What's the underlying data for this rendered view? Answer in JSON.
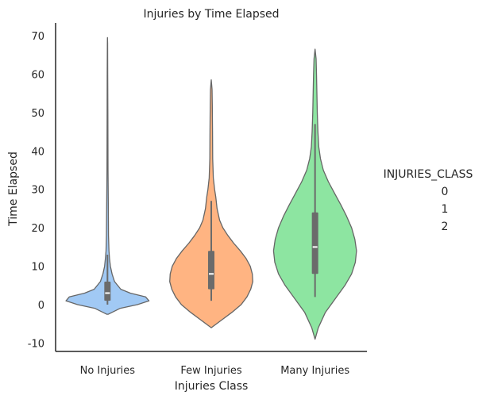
{
  "chart_data": {
    "type": "violin",
    "title": "Injuries by Time Elapsed",
    "xlabel": "Injuries Class",
    "ylabel": "Time Elapsed",
    "categories": [
      "No Injuries",
      "Few Injuries",
      "Many Injuries"
    ],
    "ylim": [
      -13,
      73.5
    ],
    "yticks": [
      -10,
      0,
      10,
      20,
      30,
      40,
      50,
      60,
      70
    ],
    "colors": [
      "#a1c9f4",
      "#ffb482",
      "#8de5a1"
    ],
    "edge_color": "#666666",
    "grid": false,
    "legend": {
      "title": "INJURIES_CLASS",
      "placement": "right",
      "entries": [
        "0",
        "1",
        "2"
      ]
    },
    "series": [
      {
        "category": "No Injuries",
        "profile": [
          [
            -2.5,
            0.02
          ],
          [
            -1.0,
            0.3
          ],
          [
            0.0,
            0.72
          ],
          [
            1.0,
            1.0
          ],
          [
            2.0,
            0.92
          ],
          [
            3.0,
            0.55
          ],
          [
            4.0,
            0.32
          ],
          [
            6.0,
            0.17
          ],
          [
            8.0,
            0.11
          ],
          [
            10.0,
            0.07
          ],
          [
            12.0,
            0.05
          ],
          [
            14.0,
            0.035
          ],
          [
            18.0,
            0.025
          ],
          [
            25.0,
            0.02
          ],
          [
            35.0,
            0.012
          ],
          [
            50.0,
            0.008
          ],
          [
            60.0,
            0.006
          ],
          [
            68.0,
            0.003
          ],
          [
            69.5,
            0.0
          ]
        ],
        "box": {
          "q1": 1,
          "median": 3,
          "q3": 6,
          "whisker_low": 0,
          "whisker_high": 13
        }
      },
      {
        "category": "Few Injuries",
        "profile": [
          [
            -6.0,
            0.0
          ],
          [
            -4.0,
            0.25
          ],
          [
            -2.0,
            0.5
          ],
          [
            0.0,
            0.72
          ],
          [
            2.0,
            0.86
          ],
          [
            4.0,
            0.95
          ],
          [
            6.0,
            1.0
          ],
          [
            8.0,
            0.99
          ],
          [
            10.0,
            0.94
          ],
          [
            12.0,
            0.84
          ],
          [
            14.0,
            0.7
          ],
          [
            16.0,
            0.54
          ],
          [
            18.0,
            0.4
          ],
          [
            20.0,
            0.28
          ],
          [
            22.0,
            0.2
          ],
          [
            25.0,
            0.14
          ],
          [
            28.0,
            0.11
          ],
          [
            30.0,
            0.08
          ],
          [
            33.0,
            0.05
          ],
          [
            38.0,
            0.035
          ],
          [
            45.0,
            0.03
          ],
          [
            52.0,
            0.025
          ],
          [
            56.0,
            0.02
          ],
          [
            58.5,
            0.0
          ]
        ],
        "box": {
          "q1": 4,
          "median": 8,
          "q3": 14,
          "whisker_low": 1,
          "whisker_high": 27
        }
      },
      {
        "category": "Many Injuries",
        "profile": [
          [
            -9.0,
            0.0
          ],
          [
            -6.0,
            0.08
          ],
          [
            -2.0,
            0.25
          ],
          [
            2.0,
            0.52
          ],
          [
            5.0,
            0.72
          ],
          [
            8.0,
            0.88
          ],
          [
            11.0,
            0.97
          ],
          [
            14.0,
            1.0
          ],
          [
            17.0,
            0.96
          ],
          [
            20.0,
            0.88
          ],
          [
            23.0,
            0.76
          ],
          [
            26.0,
            0.62
          ],
          [
            29.0,
            0.47
          ],
          [
            32.0,
            0.32
          ],
          [
            35.0,
            0.2
          ],
          [
            38.0,
            0.13
          ],
          [
            41.0,
            0.09
          ],
          [
            45.0,
            0.07
          ],
          [
            50.0,
            0.055
          ],
          [
            55.0,
            0.045
          ],
          [
            60.0,
            0.035
          ],
          [
            64.0,
            0.025
          ],
          [
            66.5,
            0.0
          ]
        ],
        "box": {
          "q1": 8,
          "median": 15,
          "q3": 24,
          "whisker_low": 2,
          "whisker_high": 47
        }
      }
    ]
  }
}
